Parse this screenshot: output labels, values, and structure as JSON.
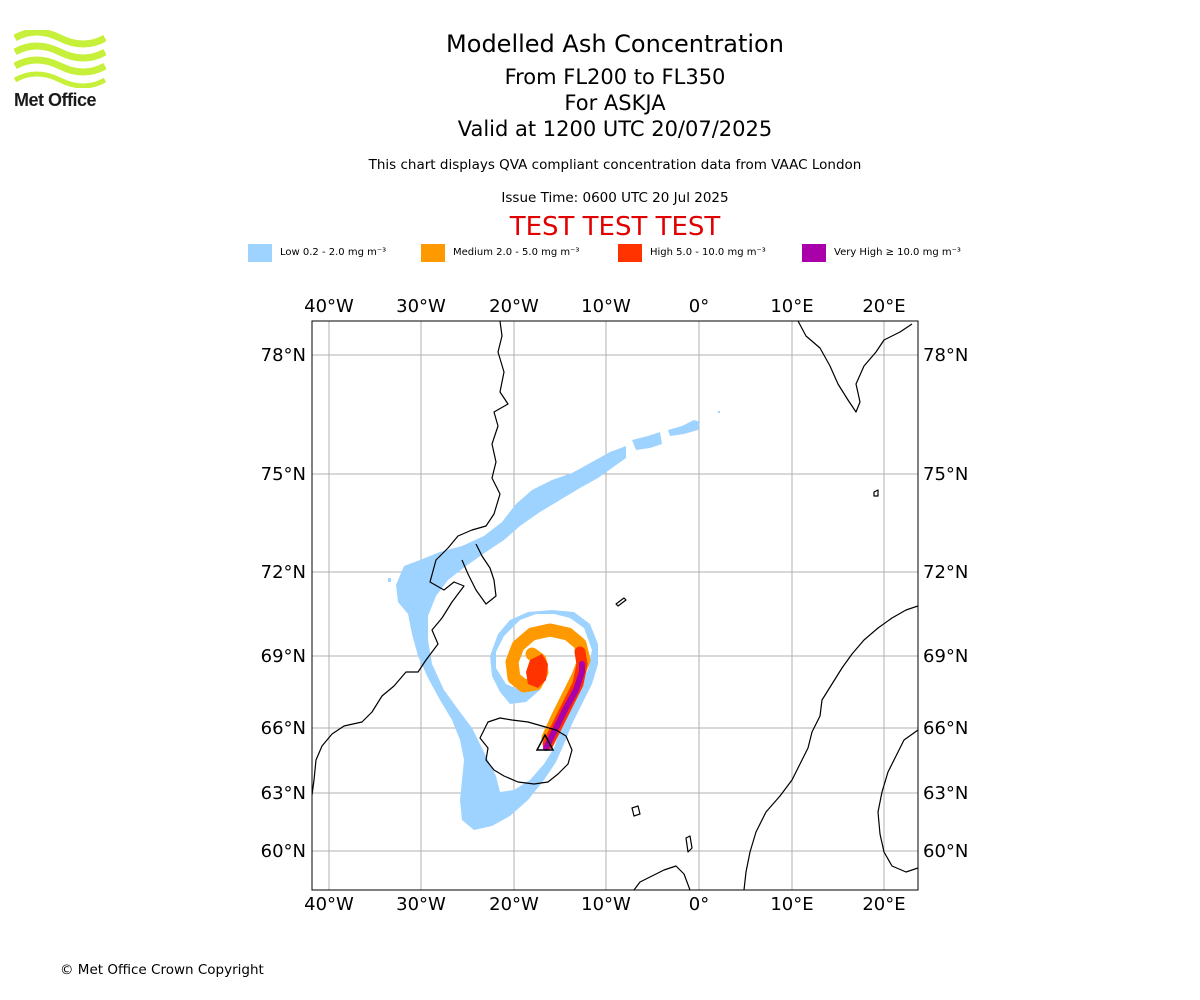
{
  "logo": {
    "name": "Met Office",
    "brand_color": "#c6f03a"
  },
  "title": {
    "main": "Modelled Ash Concentration",
    "line2": "From FL200 to FL350",
    "line3": "For ASKJA",
    "line4": "Valid at 1200 UTC 20/07/2025",
    "note": "This chart displays QVA compliant concentration data from VAAC London",
    "issue_time": "Issue Time: 0600 UTC 20 Jul 2025",
    "test_banner": "TEST TEST TEST"
  },
  "legend": [
    {
      "label": "Low 0.2 - 2.0 mg m⁻³",
      "color": "#9fd3ff"
    },
    {
      "label": "Medium 2.0 - 5.0 mg m⁻³",
      "color": "#ff9900"
    },
    {
      "label": "High 5.0 - 10.0 mg m⁻³",
      "color": "#ff3300"
    },
    {
      "label": "Very High ≥ 10.0 mg m⁻³",
      "color": "#aa00aa"
    }
  ],
  "map": {
    "lon_labels": [
      "40°W",
      "30°W",
      "20°W",
      "10°W",
      "0°",
      "10°E",
      "20°E"
    ],
    "lat_labels": [
      "78°N",
      "75°N",
      "72°N",
      "69°N",
      "66°N",
      "63°N",
      "60°N"
    ],
    "volcano_marker": "ASKJA",
    "grid": true
  },
  "copyright": "© Met Office Crown Copyright"
}
